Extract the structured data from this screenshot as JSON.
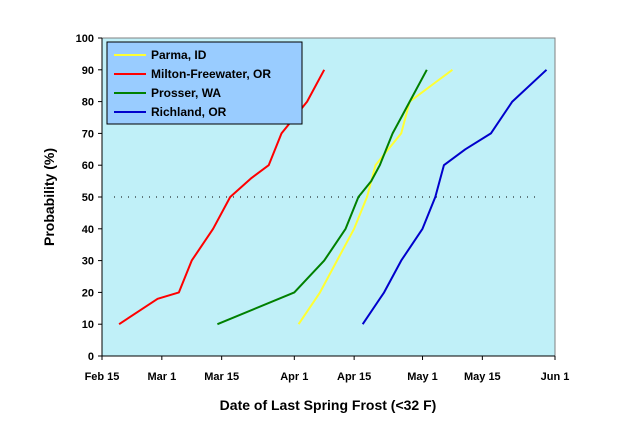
{
  "chart_data": {
    "type": "line",
    "title": "",
    "xlabel": "Date of Last Spring Frost (<32 F)",
    "ylabel": "Probability (%)",
    "xlim": [
      "Feb 15",
      "Jun 1"
    ],
    "ylim": [
      0,
      100
    ],
    "x_ticks": [
      "Feb 15",
      "Mar 1",
      "Mar 15",
      "Apr 1",
      "Apr 15",
      "May 1",
      "May 15",
      "Jun 1"
    ],
    "y_ticks": [
      0,
      10,
      20,
      30,
      40,
      50,
      60,
      70,
      80,
      90,
      100
    ],
    "grid": false,
    "reference_line": {
      "y": 50,
      "style": "dotted"
    },
    "legend": {
      "position": "top-left"
    },
    "colors": {
      "plot_background": "#c0f0f8",
      "legend_background": "#99ccff",
      "reference_line": "#000000"
    },
    "series": [
      {
        "name": "Parma, ID",
        "color": "#ffff33",
        "points": [
          {
            "x": "Apr 2",
            "y": 10
          },
          {
            "x": "Apr 7",
            "y": 20
          },
          {
            "x": "Apr 11",
            "y": 30
          },
          {
            "x": "Apr 15",
            "y": 40
          },
          {
            "x": "Apr 18",
            "y": 50
          },
          {
            "x": "Apr 20",
            "y": 60
          },
          {
            "x": "Apr 23",
            "y": 65
          },
          {
            "x": "Apr 26",
            "y": 70
          },
          {
            "x": "Apr 28",
            "y": 80
          },
          {
            "x": "May 1",
            "y": 83
          },
          {
            "x": "May 4",
            "y": 86
          },
          {
            "x": "May 8",
            "y": 90
          }
        ]
      },
      {
        "name": "Milton-Freewater, OR",
        "color": "#ff0000",
        "points": [
          {
            "x": "Feb 19",
            "y": 10
          },
          {
            "x": "Feb 28",
            "y": 18
          },
          {
            "x": "Mar 5",
            "y": 20
          },
          {
            "x": "Mar 8",
            "y": 30
          },
          {
            "x": "Mar 13",
            "y": 40
          },
          {
            "x": "Mar 17",
            "y": 50
          },
          {
            "x": "Mar 22",
            "y": 56
          },
          {
            "x": "Mar 26",
            "y": 60
          },
          {
            "x": "Mar 29",
            "y": 70
          },
          {
            "x": "Apr 4",
            "y": 80
          },
          {
            "x": "Apr 8",
            "y": 90
          }
        ]
      },
      {
        "name": "Prosser, WA",
        "color": "#008000",
        "points": [
          {
            "x": "Mar 14",
            "y": 10
          },
          {
            "x": "Apr 1",
            "y": 20
          },
          {
            "x": "Apr 8",
            "y": 30
          },
          {
            "x": "Apr 13",
            "y": 40
          },
          {
            "x": "Apr 16",
            "y": 50
          },
          {
            "x": "Apr 19",
            "y": 55
          },
          {
            "x": "Apr 21",
            "y": 60
          },
          {
            "x": "Apr 24",
            "y": 70
          },
          {
            "x": "Apr 26",
            "y": 75
          },
          {
            "x": "Apr 28",
            "y": 80
          },
          {
            "x": "May 2",
            "y": 90
          }
        ]
      },
      {
        "name": "Richland, OR",
        "color": "#0000cc",
        "points": [
          {
            "x": "Apr 17",
            "y": 10
          },
          {
            "x": "Apr 22",
            "y": 20
          },
          {
            "x": "Apr 26",
            "y": 30
          },
          {
            "x": "May 1",
            "y": 40
          },
          {
            "x": "May 4",
            "y": 50
          },
          {
            "x": "May 6",
            "y": 60
          },
          {
            "x": "May 11",
            "y": 65
          },
          {
            "x": "May 17",
            "y": 70
          },
          {
            "x": "May 22",
            "y": 80
          },
          {
            "x": "May 30",
            "y": 90
          }
        ]
      }
    ]
  }
}
